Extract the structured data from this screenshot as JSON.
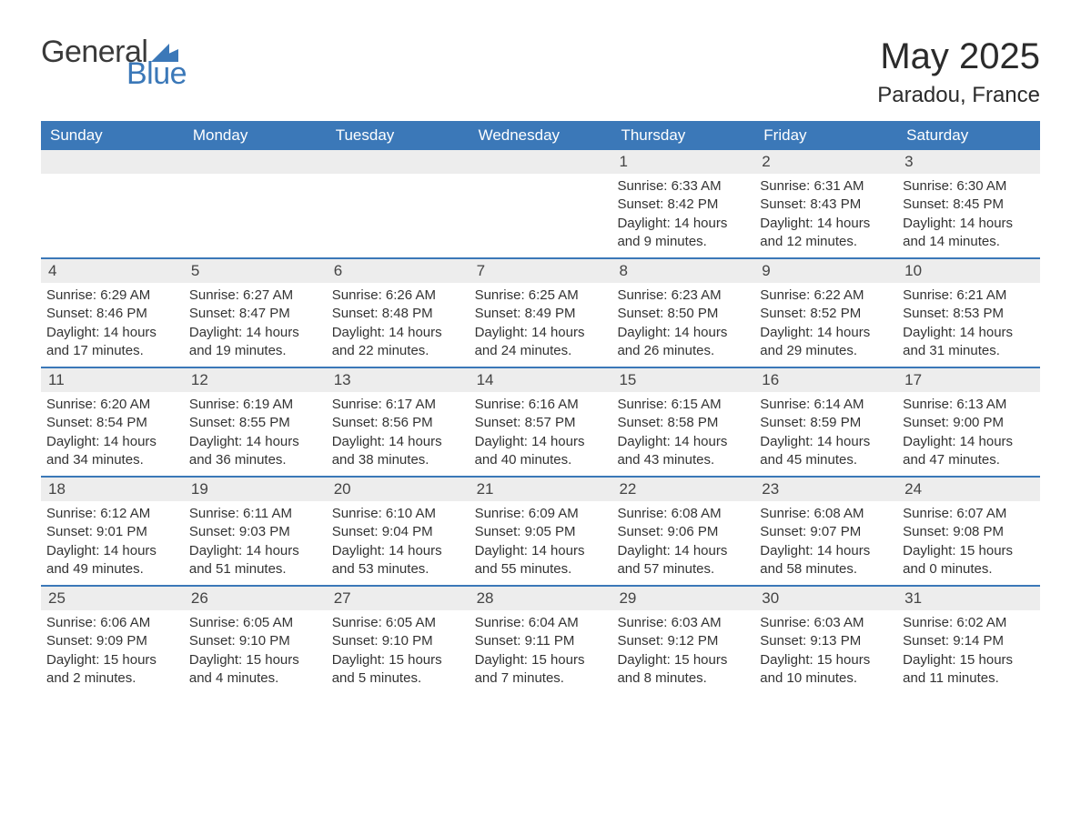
{
  "brand": {
    "general": "General",
    "blue": "Blue",
    "accent_color": "#3b78b8"
  },
  "title": "May 2025",
  "location": "Paradou, France",
  "day_headers": [
    "Sunday",
    "Monday",
    "Tuesday",
    "Wednesday",
    "Thursday",
    "Friday",
    "Saturday"
  ],
  "header_bg": "#3b78b8",
  "header_text_color": "#ffffff",
  "daynum_bg": "#ededed",
  "row_border_color": "#3b78b8",
  "body_text_color": "#333333",
  "background_color": "#ffffff",
  "weeks": [
    [
      null,
      null,
      null,
      null,
      {
        "n": "1",
        "sunrise": "Sunrise: 6:33 AM",
        "sunset": "Sunset: 8:42 PM",
        "daylight": "Daylight: 14 hours and 9 minutes."
      },
      {
        "n": "2",
        "sunrise": "Sunrise: 6:31 AM",
        "sunset": "Sunset: 8:43 PM",
        "daylight": "Daylight: 14 hours and 12 minutes."
      },
      {
        "n": "3",
        "sunrise": "Sunrise: 6:30 AM",
        "sunset": "Sunset: 8:45 PM",
        "daylight": "Daylight: 14 hours and 14 minutes."
      }
    ],
    [
      {
        "n": "4",
        "sunrise": "Sunrise: 6:29 AM",
        "sunset": "Sunset: 8:46 PM",
        "daylight": "Daylight: 14 hours and 17 minutes."
      },
      {
        "n": "5",
        "sunrise": "Sunrise: 6:27 AM",
        "sunset": "Sunset: 8:47 PM",
        "daylight": "Daylight: 14 hours and 19 minutes."
      },
      {
        "n": "6",
        "sunrise": "Sunrise: 6:26 AM",
        "sunset": "Sunset: 8:48 PM",
        "daylight": "Daylight: 14 hours and 22 minutes."
      },
      {
        "n": "7",
        "sunrise": "Sunrise: 6:25 AM",
        "sunset": "Sunset: 8:49 PM",
        "daylight": "Daylight: 14 hours and 24 minutes."
      },
      {
        "n": "8",
        "sunrise": "Sunrise: 6:23 AM",
        "sunset": "Sunset: 8:50 PM",
        "daylight": "Daylight: 14 hours and 26 minutes."
      },
      {
        "n": "9",
        "sunrise": "Sunrise: 6:22 AM",
        "sunset": "Sunset: 8:52 PM",
        "daylight": "Daylight: 14 hours and 29 minutes."
      },
      {
        "n": "10",
        "sunrise": "Sunrise: 6:21 AM",
        "sunset": "Sunset: 8:53 PM",
        "daylight": "Daylight: 14 hours and 31 minutes."
      }
    ],
    [
      {
        "n": "11",
        "sunrise": "Sunrise: 6:20 AM",
        "sunset": "Sunset: 8:54 PM",
        "daylight": "Daylight: 14 hours and 34 minutes."
      },
      {
        "n": "12",
        "sunrise": "Sunrise: 6:19 AM",
        "sunset": "Sunset: 8:55 PM",
        "daylight": "Daylight: 14 hours and 36 minutes."
      },
      {
        "n": "13",
        "sunrise": "Sunrise: 6:17 AM",
        "sunset": "Sunset: 8:56 PM",
        "daylight": "Daylight: 14 hours and 38 minutes."
      },
      {
        "n": "14",
        "sunrise": "Sunrise: 6:16 AM",
        "sunset": "Sunset: 8:57 PM",
        "daylight": "Daylight: 14 hours and 40 minutes."
      },
      {
        "n": "15",
        "sunrise": "Sunrise: 6:15 AM",
        "sunset": "Sunset: 8:58 PM",
        "daylight": "Daylight: 14 hours and 43 minutes."
      },
      {
        "n": "16",
        "sunrise": "Sunrise: 6:14 AM",
        "sunset": "Sunset: 8:59 PM",
        "daylight": "Daylight: 14 hours and 45 minutes."
      },
      {
        "n": "17",
        "sunrise": "Sunrise: 6:13 AM",
        "sunset": "Sunset: 9:00 PM",
        "daylight": "Daylight: 14 hours and 47 minutes."
      }
    ],
    [
      {
        "n": "18",
        "sunrise": "Sunrise: 6:12 AM",
        "sunset": "Sunset: 9:01 PM",
        "daylight": "Daylight: 14 hours and 49 minutes."
      },
      {
        "n": "19",
        "sunrise": "Sunrise: 6:11 AM",
        "sunset": "Sunset: 9:03 PM",
        "daylight": "Daylight: 14 hours and 51 minutes."
      },
      {
        "n": "20",
        "sunrise": "Sunrise: 6:10 AM",
        "sunset": "Sunset: 9:04 PM",
        "daylight": "Daylight: 14 hours and 53 minutes."
      },
      {
        "n": "21",
        "sunrise": "Sunrise: 6:09 AM",
        "sunset": "Sunset: 9:05 PM",
        "daylight": "Daylight: 14 hours and 55 minutes."
      },
      {
        "n": "22",
        "sunrise": "Sunrise: 6:08 AM",
        "sunset": "Sunset: 9:06 PM",
        "daylight": "Daylight: 14 hours and 57 minutes."
      },
      {
        "n": "23",
        "sunrise": "Sunrise: 6:08 AM",
        "sunset": "Sunset: 9:07 PM",
        "daylight": "Daylight: 14 hours and 58 minutes."
      },
      {
        "n": "24",
        "sunrise": "Sunrise: 6:07 AM",
        "sunset": "Sunset: 9:08 PM",
        "daylight": "Daylight: 15 hours and 0 minutes."
      }
    ],
    [
      {
        "n": "25",
        "sunrise": "Sunrise: 6:06 AM",
        "sunset": "Sunset: 9:09 PM",
        "daylight": "Daylight: 15 hours and 2 minutes."
      },
      {
        "n": "26",
        "sunrise": "Sunrise: 6:05 AM",
        "sunset": "Sunset: 9:10 PM",
        "daylight": "Daylight: 15 hours and 4 minutes."
      },
      {
        "n": "27",
        "sunrise": "Sunrise: 6:05 AM",
        "sunset": "Sunset: 9:10 PM",
        "daylight": "Daylight: 15 hours and 5 minutes."
      },
      {
        "n": "28",
        "sunrise": "Sunrise: 6:04 AM",
        "sunset": "Sunset: 9:11 PM",
        "daylight": "Daylight: 15 hours and 7 minutes."
      },
      {
        "n": "29",
        "sunrise": "Sunrise: 6:03 AM",
        "sunset": "Sunset: 9:12 PM",
        "daylight": "Daylight: 15 hours and 8 minutes."
      },
      {
        "n": "30",
        "sunrise": "Sunrise: 6:03 AM",
        "sunset": "Sunset: 9:13 PM",
        "daylight": "Daylight: 15 hours and 10 minutes."
      },
      {
        "n": "31",
        "sunrise": "Sunrise: 6:02 AM",
        "sunset": "Sunset: 9:14 PM",
        "daylight": "Daylight: 15 hours and 11 minutes."
      }
    ]
  ]
}
